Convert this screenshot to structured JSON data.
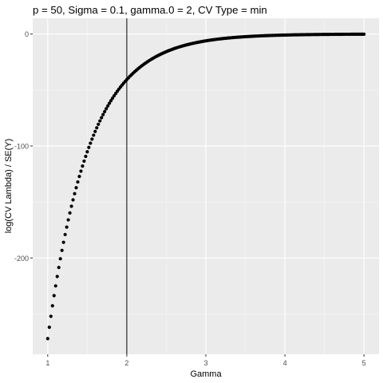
{
  "chart_data": {
    "type": "scatter",
    "title": "p = 50, Sigma = 0.1, gamma.0 = 2, CV Type = min",
    "xlabel": "Gamma",
    "ylabel": "log(CV Lambda) / SE(Y)",
    "xlim": [
      0.81,
      5.19
    ],
    "ylim": [
      -286,
      14
    ],
    "x_ticks": [
      1,
      2,
      3,
      4,
      5
    ],
    "x_tick_labels": [
      "1",
      "2",
      "3",
      "4",
      "5"
    ],
    "y_ticks": [
      0,
      -100,
      -200
    ],
    "y_tick_labels": [
      "0",
      "-100",
      "-200"
    ],
    "grid": true,
    "legend": "none",
    "vline": {
      "x": 2
    },
    "curve": {
      "x_start": 1,
      "x_end": 5,
      "x_step": 0.02,
      "model": "y = A * exp(-k * (x - 1))",
      "A": -272,
      "k": 1.9
    },
    "colors": {
      "panel": "#EBEBEB",
      "grid_major": "#FFFFFF",
      "grid_minor": "#F5F5F5",
      "points": "#000000",
      "vline": "#000000",
      "tick_text": "#4D4D4D",
      "axis_text": "#000000"
    }
  }
}
